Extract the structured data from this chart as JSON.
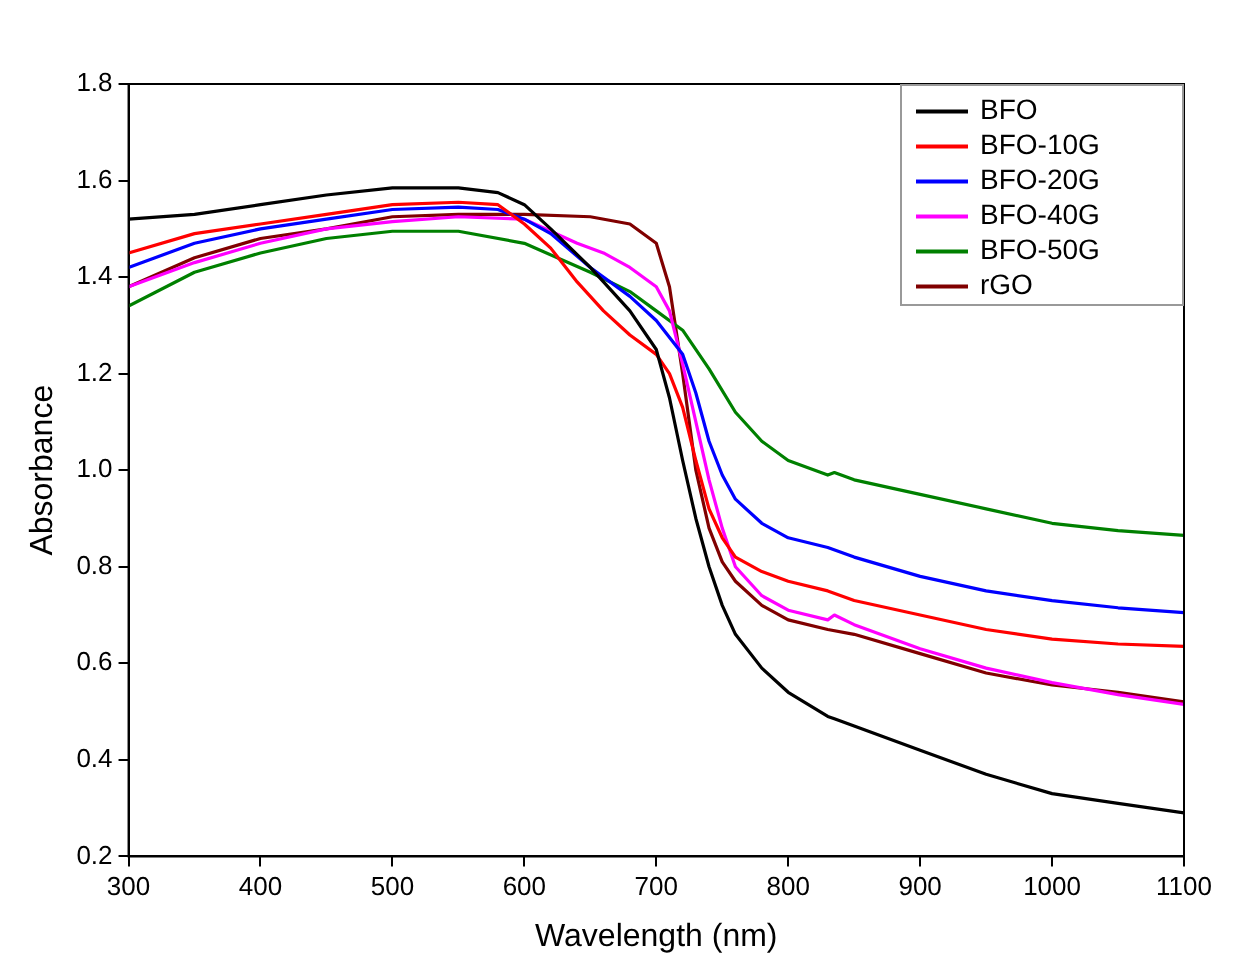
{
  "chart_data": {
    "type": "line",
    "xlabel": "Wavelength (nm)",
    "ylabel": "Absorbance",
    "xlim": [
      300,
      1100
    ],
    "xticks": [
      300,
      400,
      500,
      600,
      700,
      800,
      900,
      1000,
      1100
    ],
    "ylim": [
      0.2,
      1.8
    ],
    "yticks": [
      0.2,
      0.4,
      0.6,
      0.8,
      {
        "value": 1,
        "label": "1.0"
      },
      1.2,
      1.4,
      1.6,
      1.8
    ],
    "grid": false,
    "legend": "top right",
    "marker": "none",
    "line_style": "solid",
    "series": [
      {
        "name": "BFO",
        "color": "#000000",
        "x": [
          300,
          350,
          400,
          450,
          500,
          550,
          580,
          600,
          620,
          650,
          680,
          700,
          710,
          720,
          730,
          740,
          750,
          760,
          780,
          800,
          830,
          835,
          850,
          900,
          950,
          1000,
          1050,
          1100
        ],
        "values": [
          1.52,
          1.53,
          1.55,
          1.57,
          1.585,
          1.585,
          1.575,
          1.55,
          1.5,
          1.42,
          1.33,
          1.25,
          1.15,
          1.02,
          0.9,
          0.8,
          0.72,
          0.66,
          0.59,
          0.54,
          0.49,
          0.485,
          0.47,
          0.42,
          0.37,
          0.33,
          0.31,
          0.29
        ]
      },
      {
        "name": "BFO-10G",
        "color": "#ff0000",
        "x": [
          300,
          350,
          400,
          450,
          500,
          550,
          580,
          600,
          620,
          640,
          660,
          680,
          700,
          710,
          720,
          730,
          740,
          750,
          760,
          780,
          800,
          830,
          850,
          900,
          950,
          1000,
          1050,
          1100
        ],
        "values": [
          1.45,
          1.49,
          1.51,
          1.53,
          1.55,
          1.555,
          1.55,
          1.51,
          1.46,
          1.39,
          1.33,
          1.28,
          1.24,
          1.2,
          1.13,
          1.02,
          0.92,
          0.86,
          0.82,
          0.79,
          0.77,
          0.75,
          0.73,
          0.7,
          0.67,
          0.65,
          0.64,
          0.635
        ]
      },
      {
        "name": "BFO-20G",
        "color": "#0000ff",
        "x": [
          300,
          350,
          400,
          450,
          500,
          550,
          580,
          600,
          620,
          650,
          680,
          700,
          720,
          730,
          740,
          750,
          760,
          780,
          800,
          830,
          850,
          900,
          950,
          1000,
          1050,
          1100
        ],
        "values": [
          1.42,
          1.47,
          1.5,
          1.52,
          1.54,
          1.545,
          1.54,
          1.52,
          1.49,
          1.42,
          1.36,
          1.31,
          1.24,
          1.16,
          1.06,
          0.99,
          0.94,
          0.89,
          0.86,
          0.84,
          0.82,
          0.78,
          0.75,
          0.73,
          0.715,
          0.705
        ]
      },
      {
        "name": "BFO-40G",
        "color": "#ff00ff",
        "x": [
          300,
          350,
          400,
          450,
          500,
          550,
          600,
          640,
          660,
          680,
          700,
          710,
          720,
          730,
          740,
          750,
          760,
          780,
          800,
          830,
          835,
          850,
          900,
          950,
          1000,
          1050,
          1100
        ],
        "values": [
          1.38,
          1.43,
          1.47,
          1.5,
          1.515,
          1.525,
          1.52,
          1.47,
          1.45,
          1.42,
          1.38,
          1.33,
          1.22,
          1.1,
          0.98,
          0.88,
          0.8,
          0.74,
          0.71,
          0.69,
          0.7,
          0.68,
          0.63,
          0.59,
          0.56,
          0.535,
          0.515
        ]
      },
      {
        "name": "BFO-50G",
        "color": "#008000",
        "x": [
          300,
          350,
          400,
          450,
          500,
          550,
          600,
          650,
          680,
          700,
          720,
          740,
          760,
          780,
          800,
          830,
          835,
          850,
          900,
          950,
          1000,
          1050,
          1100
        ],
        "values": [
          1.34,
          1.41,
          1.45,
          1.48,
          1.495,
          1.495,
          1.47,
          1.41,
          1.37,
          1.33,
          1.29,
          1.21,
          1.12,
          1.06,
          1.02,
          0.99,
          0.995,
          0.98,
          0.95,
          0.92,
          0.89,
          0.875,
          0.865
        ]
      },
      {
        "name": "rGO",
        "color": "#800000",
        "x": [
          300,
          350,
          400,
          450,
          500,
          550,
          600,
          650,
          680,
          700,
          710,
          720,
          730,
          740,
          750,
          760,
          780,
          800,
          830,
          850,
          900,
          950,
          1000,
          1050,
          1100
        ],
        "values": [
          1.38,
          1.44,
          1.48,
          1.5,
          1.525,
          1.53,
          1.53,
          1.525,
          1.51,
          1.47,
          1.38,
          1.2,
          1.0,
          0.88,
          0.81,
          0.77,
          0.72,
          0.69,
          0.67,
          0.66,
          0.62,
          0.58,
          0.555,
          0.54,
          0.52
        ]
      }
    ]
  }
}
